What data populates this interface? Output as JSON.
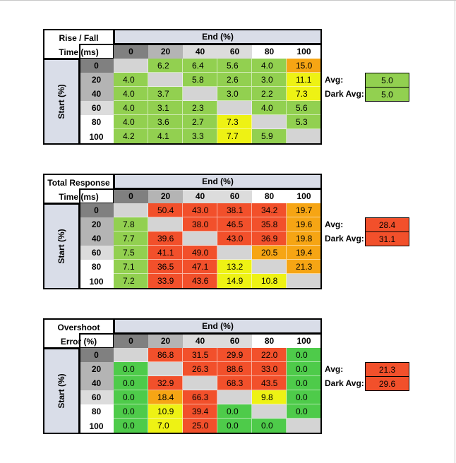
{
  "colors": {
    "green": "#92d050",
    "bright_green": "#4ecb4a",
    "yellow": "#eef214",
    "orange": "#f6a514",
    "red": "#f2502b",
    "empty": "#d4d4d4",
    "header_dark": "#808080",
    "header_mid": "#b4b4b4",
    "header_light": "#dcdcdc",
    "header_white": "#ffffff",
    "axis_fill": "#d9dde8"
  },
  "chart_data": [
    {
      "type": "table",
      "title_line1": "Rise / Fall",
      "title_line2": "Time (ms)",
      "col_axis_label": "End (%)",
      "row_axis_label": "Start (%)",
      "columns": [
        "0",
        "20",
        "40",
        "60",
        "80",
        "100"
      ],
      "rows": [
        "0",
        "20",
        "40",
        "60",
        "80",
        "100"
      ],
      "values": [
        [
          "",
          "6.2",
          "6.4",
          "5.6",
          "4.0",
          "15.0"
        ],
        [
          "4.0",
          "",
          "5.8",
          "2.6",
          "3.0",
          "11.1"
        ],
        [
          "4.0",
          "3.7",
          "",
          "3.0",
          "2.2",
          "7.3"
        ],
        [
          "4.0",
          "3.1",
          "2.3",
          "",
          "4.0",
          "5.6"
        ],
        [
          "4.0",
          "3.6",
          "2.7",
          "7.3",
          "",
          "5.3"
        ],
        [
          "4.2",
          "4.1",
          "3.3",
          "7.7",
          "5.9",
          ""
        ]
      ],
      "cell_colors": [
        [
          "empty",
          "green",
          "green",
          "green",
          "green",
          "orange"
        ],
        [
          "green",
          "empty",
          "green",
          "green",
          "green",
          "yellow"
        ],
        [
          "green",
          "green",
          "empty",
          "green",
          "green",
          "yellow"
        ],
        [
          "green",
          "green",
          "green",
          "empty",
          "green",
          "green"
        ],
        [
          "green",
          "green",
          "green",
          "yellow",
          "empty",
          "green"
        ],
        [
          "green",
          "green",
          "green",
          "yellow",
          "green",
          "empty"
        ]
      ],
      "summary": [
        {
          "label": "Avg:",
          "value": "5.0",
          "color": "green"
        },
        {
          "label": "Dark Avg:",
          "value": "5.0",
          "color": "green"
        }
      ]
    },
    {
      "type": "table",
      "title_line1": "Total Response",
      "title_line2": "Time (ms)",
      "col_axis_label": "End (%)",
      "row_axis_label": "Start (%)",
      "columns": [
        "0",
        "20",
        "40",
        "60",
        "80",
        "100"
      ],
      "rows": [
        "0",
        "20",
        "40",
        "60",
        "80",
        "100"
      ],
      "values": [
        [
          "",
          "50.4",
          "43.0",
          "38.1",
          "34.2",
          "19.7"
        ],
        [
          "7.8",
          "",
          "38.0",
          "46.5",
          "35.8",
          "19.6"
        ],
        [
          "7.7",
          "39.6",
          "",
          "43.0",
          "36.9",
          "19.8"
        ],
        [
          "7.5",
          "41.1",
          "49.0",
          "",
          "20.5",
          "19.4"
        ],
        [
          "7.1",
          "36.5",
          "47.1",
          "13.2",
          "",
          "21.3"
        ],
        [
          "7.2",
          "33.9",
          "43.6",
          "14.9",
          "10.8",
          ""
        ]
      ],
      "cell_colors": [
        [
          "empty",
          "red",
          "red",
          "red",
          "red",
          "orange"
        ],
        [
          "green",
          "empty",
          "red",
          "red",
          "red",
          "orange"
        ],
        [
          "green",
          "red",
          "empty",
          "red",
          "red",
          "orange"
        ],
        [
          "green",
          "red",
          "red",
          "empty",
          "orange",
          "orange"
        ],
        [
          "green",
          "red",
          "red",
          "yellow",
          "empty",
          "orange"
        ],
        [
          "green",
          "red",
          "red",
          "yellow",
          "yellow",
          "empty"
        ]
      ],
      "summary": [
        {
          "label": "Avg:",
          "value": "28.4",
          "color": "red"
        },
        {
          "label": "Dark Avg:",
          "value": "31.1",
          "color": "red"
        }
      ]
    },
    {
      "type": "table",
      "title_line1": "Overshoot",
      "title_line2": "Error (%)",
      "col_axis_label": "End (%)",
      "row_axis_label": "Start (%)",
      "columns": [
        "0",
        "20",
        "40",
        "60",
        "80",
        "100"
      ],
      "rows": [
        "0",
        "20",
        "40",
        "60",
        "80",
        "100"
      ],
      "values": [
        [
          "",
          "86.8",
          "31.5",
          "29.9",
          "22.0",
          "0.0"
        ],
        [
          "0.0",
          "",
          "26.3",
          "88.6",
          "33.0",
          "0.0"
        ],
        [
          "0.0",
          "32.9",
          "",
          "68.3",
          "43.5",
          "0.0"
        ],
        [
          "0.0",
          "18.4",
          "66.3",
          "",
          "9.8",
          "0.0"
        ],
        [
          "0.0",
          "10.9",
          "39.4",
          "0.0",
          "",
          "0.0"
        ],
        [
          "0.0",
          "7.0",
          "25.0",
          "0.0",
          "0.0",
          ""
        ]
      ],
      "cell_colors": [
        [
          "empty",
          "red",
          "red",
          "red",
          "red",
          "bright_green"
        ],
        [
          "bright_green",
          "empty",
          "red",
          "red",
          "red",
          "bright_green"
        ],
        [
          "bright_green",
          "red",
          "empty",
          "red",
          "red",
          "bright_green"
        ],
        [
          "bright_green",
          "orange",
          "red",
          "empty",
          "yellow",
          "bright_green"
        ],
        [
          "bright_green",
          "yellow",
          "red",
          "bright_green",
          "empty",
          "bright_green"
        ],
        [
          "bright_green",
          "yellow",
          "red",
          "bright_green",
          "bright_green",
          "empty"
        ]
      ],
      "summary": [
        {
          "label": "Avg:",
          "value": "21.3",
          "color": "red"
        },
        {
          "label": "Dark Avg:",
          "value": "29.6",
          "color": "red"
        }
      ]
    }
  ]
}
